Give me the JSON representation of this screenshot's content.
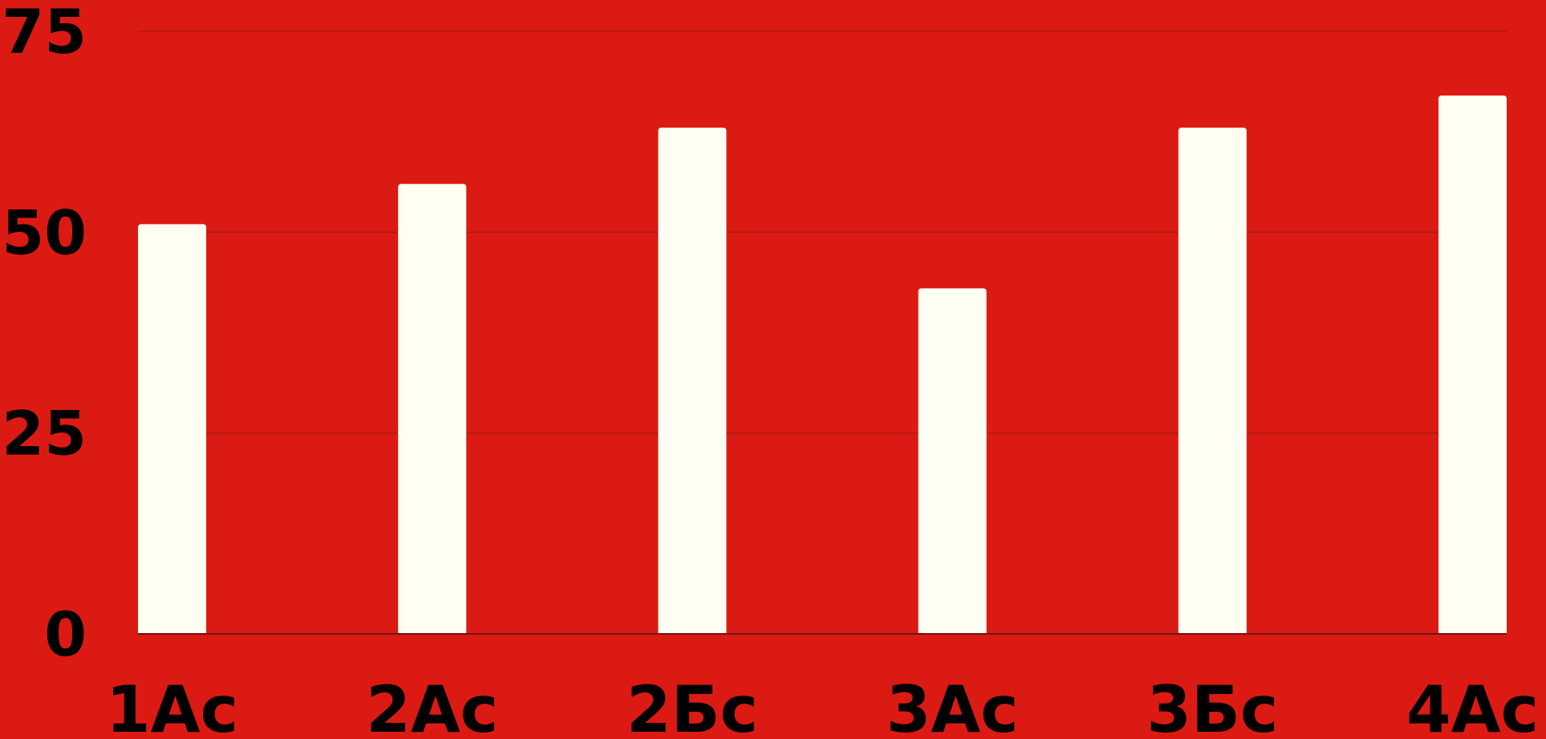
{
  "chart_data": {
    "type": "bar",
    "categories": [
      "1Ас",
      "2Ас",
      "2Бс",
      "3Ас",
      "3Бс",
      "4Ас"
    ],
    "values": [
      51,
      56,
      63,
      43,
      63,
      67
    ],
    "yticks": [
      "0",
      "25",
      "50",
      "75"
    ],
    "ylim": [
      0,
      75
    ],
    "grid": true,
    "legend": "none"
  },
  "colors": {
    "background": "#DB1B13",
    "bar": "#FFFEF2",
    "gridline": "#B51A14",
    "baseline": "#6E1510",
    "text": "#000000"
  }
}
